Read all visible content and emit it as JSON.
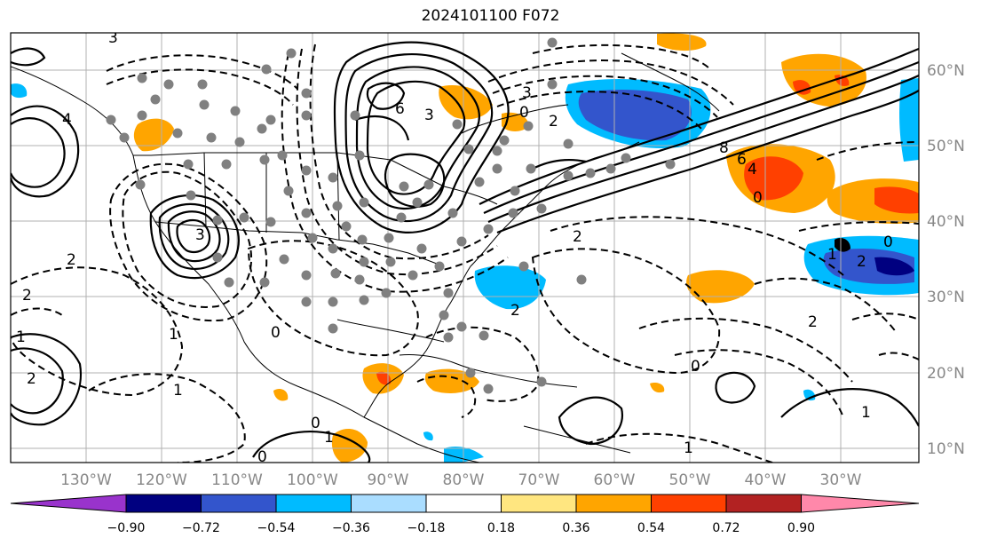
{
  "title": "2024101100 F072",
  "map": {
    "lon_labels": [
      "130°W",
      "120°W",
      "110°W",
      "100°W",
      "90°W",
      "80°W",
      "70°W",
      "60°W",
      "50°W",
      "40°W",
      "30°W"
    ],
    "lat_labels": [
      "60°N",
      "50°N",
      "40°N",
      "30°N",
      "20°N",
      "10°N"
    ],
    "gridline_color": "#b0b0b0",
    "contour_labels": [
      "3",
      "3",
      "6",
      "3",
      "3",
      "4",
      "0",
      "2",
      "8",
      "6",
      "4",
      "0",
      "2",
      "2",
      "2",
      "2",
      "1",
      "1",
      "0",
      "0",
      "0",
      "2",
      "1",
      "1",
      "1",
      "0",
      "1",
      "2",
      "1",
      "2",
      "0"
    ],
    "station_marker_color": "#808080"
  },
  "colorbar": {
    "ticks": [
      "−0.90",
      "−0.72",
      "−0.54",
      "−0.36",
      "−0.18",
      "0.18",
      "0.36",
      "0.54",
      "0.72",
      "0.90"
    ],
    "colors": [
      "#9933cc",
      "#000080",
      "#3355cc",
      "#00bbff",
      "#aaddff",
      "#ffffff",
      "#ffe680",
      "#ffa500",
      "#ff4000",
      "#b22222",
      "#ff88aa"
    ]
  }
}
